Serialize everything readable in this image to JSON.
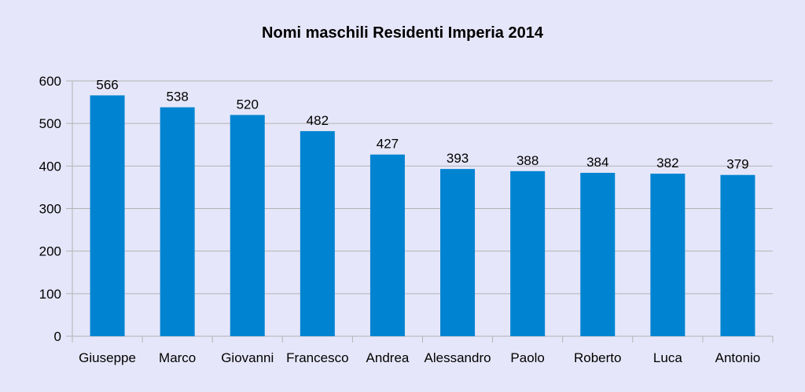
{
  "chart_data": {
    "type": "bar",
    "title": "Nomi maschili Residenti Imperia 2014",
    "categories": [
      "Giuseppe",
      "Marco",
      "Giovanni",
      "Francesco",
      "Andrea",
      "Alessandro",
      "Paolo",
      "Roberto",
      "Luca",
      "Antonio"
    ],
    "values": [
      566,
      538,
      520,
      482,
      427,
      393,
      388,
      384,
      382,
      379
    ],
    "xlabel": "",
    "ylabel": "",
    "ylim": [
      0,
      600
    ],
    "yticks": [
      0,
      100,
      200,
      300,
      400,
      500,
      600
    ],
    "grid": true,
    "legend": "none",
    "bar_color": "#0084d1",
    "background_color": "#e6e6fa",
    "grid_color": "#b3b3b3"
  }
}
